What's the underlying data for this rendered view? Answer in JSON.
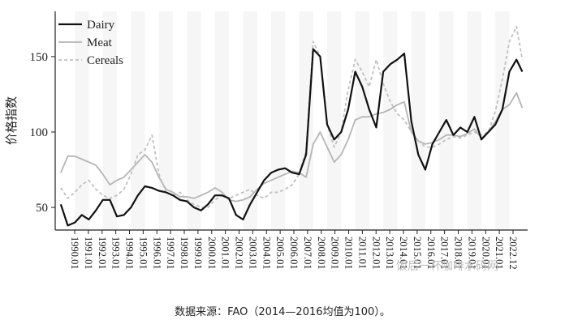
{
  "chart_data": {
    "type": "line",
    "title": "",
    "xlabel": "",
    "ylabel": "价格指数",
    "ylim": [
      35,
      180
    ],
    "yticks": [
      50,
      100,
      150
    ],
    "x_ticks": [
      "1990.01",
      "1991.01",
      "1992.01",
      "1993.01",
      "1994.01",
      "1995.01",
      "1996.01",
      "1997.01",
      "1998.01",
      "1999.01",
      "2000.01",
      "2001.01",
      "2002.01",
      "2003.01",
      "2004.01",
      "2005.01",
      "2006.01",
      "2007.01",
      "2008.01",
      "2009.01",
      "2010.01",
      "2011.01",
      "2012.01",
      "2013.01",
      "2014.01",
      "2015.01",
      "2016.01",
      "2017.01",
      "2018.01",
      "2019.01",
      "2020.01",
      "2021.01",
      "2022.12"
    ],
    "grid": false,
    "legend_position": "top-left",
    "x": [
      1990.0,
      1990.5,
      1991.0,
      1991.5,
      1992.0,
      1992.5,
      1993.0,
      1993.5,
      1994.0,
      1994.5,
      1995.0,
      1995.5,
      1996.0,
      1996.5,
      1997.0,
      1997.5,
      1998.0,
      1998.5,
      1999.0,
      1999.5,
      2000.0,
      2000.5,
      2001.0,
      2001.5,
      2002.0,
      2002.5,
      2003.0,
      2003.5,
      2004.0,
      2004.5,
      2005.0,
      2005.5,
      2006.0,
      2006.5,
      2007.0,
      2007.5,
      2008.0,
      2008.5,
      2009.0,
      2009.5,
      2010.0,
      2010.5,
      2011.0,
      2011.5,
      2012.0,
      2012.5,
      2013.0,
      2013.5,
      2014.0,
      2014.5,
      2015.0,
      2015.5,
      2016.0,
      2016.5,
      2017.0,
      2017.5,
      2018.0,
      2018.5,
      2019.0,
      2019.5,
      2020.0,
      2020.5,
      2021.0,
      2021.5,
      2022.0,
      2022.5,
      2022.92
    ],
    "series": [
      {
        "name": "Dairy",
        "color": "#111111",
        "style": "solid",
        "values": [
          52,
          38,
          40,
          45,
          42,
          48,
          55,
          55,
          44,
          45,
          50,
          58,
          64,
          63,
          61,
          60,
          58,
          55,
          54,
          50,
          48,
          52,
          58,
          58,
          56,
          45,
          42,
          52,
          60,
          68,
          73,
          75,
          76,
          73,
          72,
          85,
          155,
          150,
          105,
          95,
          100,
          115,
          140,
          130,
          115,
          103,
          140,
          145,
          148,
          152,
          107,
          85,
          75,
          92,
          100,
          108,
          98,
          103,
          100,
          110,
          95,
          100,
          105,
          115,
          140,
          148,
          140
        ]
      },
      {
        "name": "Meat",
        "color": "#b5b5b5",
        "style": "solid",
        "values": [
          73,
          84,
          84,
          82,
          80,
          78,
          72,
          65,
          68,
          70,
          75,
          80,
          85,
          80,
          70,
          62,
          60,
          57,
          57,
          56,
          58,
          60,
          63,
          60,
          55,
          54,
          55,
          57,
          62,
          66,
          68,
          70,
          72,
          74,
          73,
          70,
          92,
          100,
          90,
          80,
          85,
          95,
          108,
          110,
          110,
          112,
          113,
          115,
          118,
          120,
          100,
          94,
          92,
          93,
          95,
          98,
          98,
          97,
          99,
          102,
          96,
          100,
          107,
          115,
          118,
          126,
          116
        ]
      },
      {
        "name": "Cereals",
        "color": "#c0c0c0",
        "style": "dashed",
        "values": [
          63,
          56,
          60,
          65,
          68,
          62,
          58,
          56,
          58,
          62,
          72,
          85,
          88,
          98,
          72,
          60,
          58,
          60,
          55,
          52,
          50,
          50,
          55,
          58,
          56,
          58,
          60,
          62,
          58,
          56,
          60,
          60,
          62,
          65,
          72,
          88,
          160,
          150,
          105,
          90,
          100,
          128,
          148,
          140,
          130,
          148,
          132,
          120,
          112,
          108,
          100,
          94,
          90,
          90,
          92,
          95,
          97,
          96,
          98,
          100,
          98,
          100,
          114,
          135,
          160,
          170,
          148
        ]
      }
    ]
  },
  "footer": {
    "source": "数据来源：FAO（2014—2016均值为100）。",
    "watermark": "饭后一杯咖啡水码网"
  }
}
